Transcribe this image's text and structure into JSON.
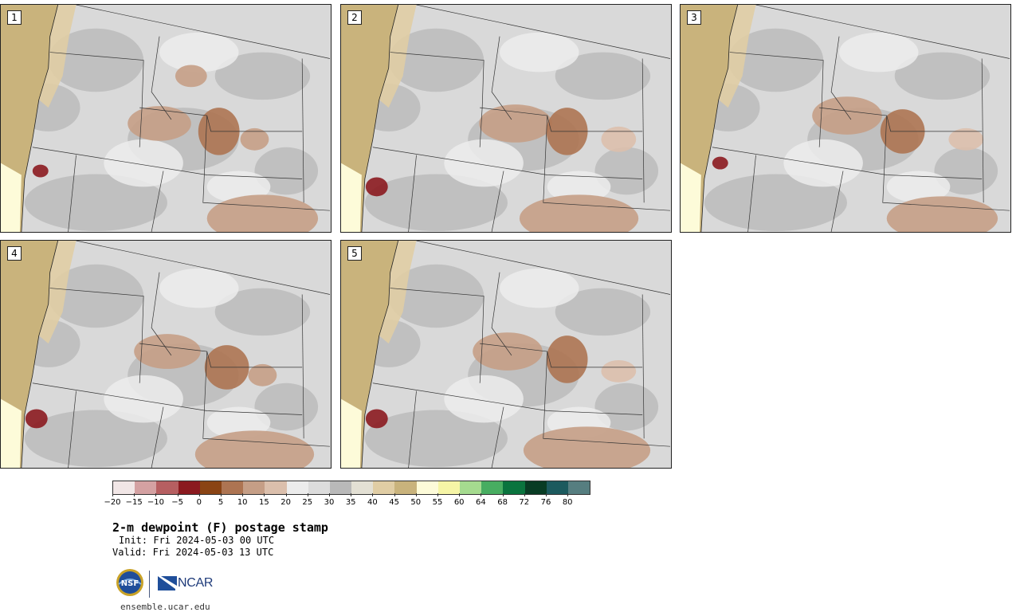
{
  "map": {
    "members": [
      {
        "label": "1"
      },
      {
        "label": "2"
      },
      {
        "label": "3"
      },
      {
        "label": "4"
      },
      {
        "label": "5"
      }
    ]
  },
  "colorbar": {
    "colors": [
      "#f1e6e6",
      "#d4a1a2",
      "#b65f61",
      "#8b1a1f",
      "#8a4414",
      "#ad7452",
      "#c59e86",
      "#dbbfac",
      "#ececec",
      "#dcdcdc",
      "#b9b9b9",
      "#e3e0d4",
      "#e0cda4",
      "#c9b37c",
      "#fdfbd9",
      "#f6f5a6",
      "#a5db8f",
      "#48ad61",
      "#0a743e",
      "#083c24",
      "#1c5a5e",
      "#567e80"
    ],
    "tick_labels": [
      "−20",
      "−15",
      "−10",
      "−5",
      "0",
      "5",
      "10",
      "15",
      "20",
      "25",
      "30",
      "35",
      "40",
      "45",
      "50",
      "55",
      "60",
      "64",
      "68",
      "72",
      "76",
      "80"
    ]
  },
  "header": {
    "title": "2-m dewpoint (F) postage stamp",
    "init": "Init: Fri 2024-05-03 00 UTC",
    "valid": "Valid: Fri 2024-05-03 13 UTC"
  },
  "logos": {
    "nsf_text": "NSF",
    "ncar_text": "NCAR"
  },
  "footer": {
    "site": "ensemble.ucar.edu"
  }
}
